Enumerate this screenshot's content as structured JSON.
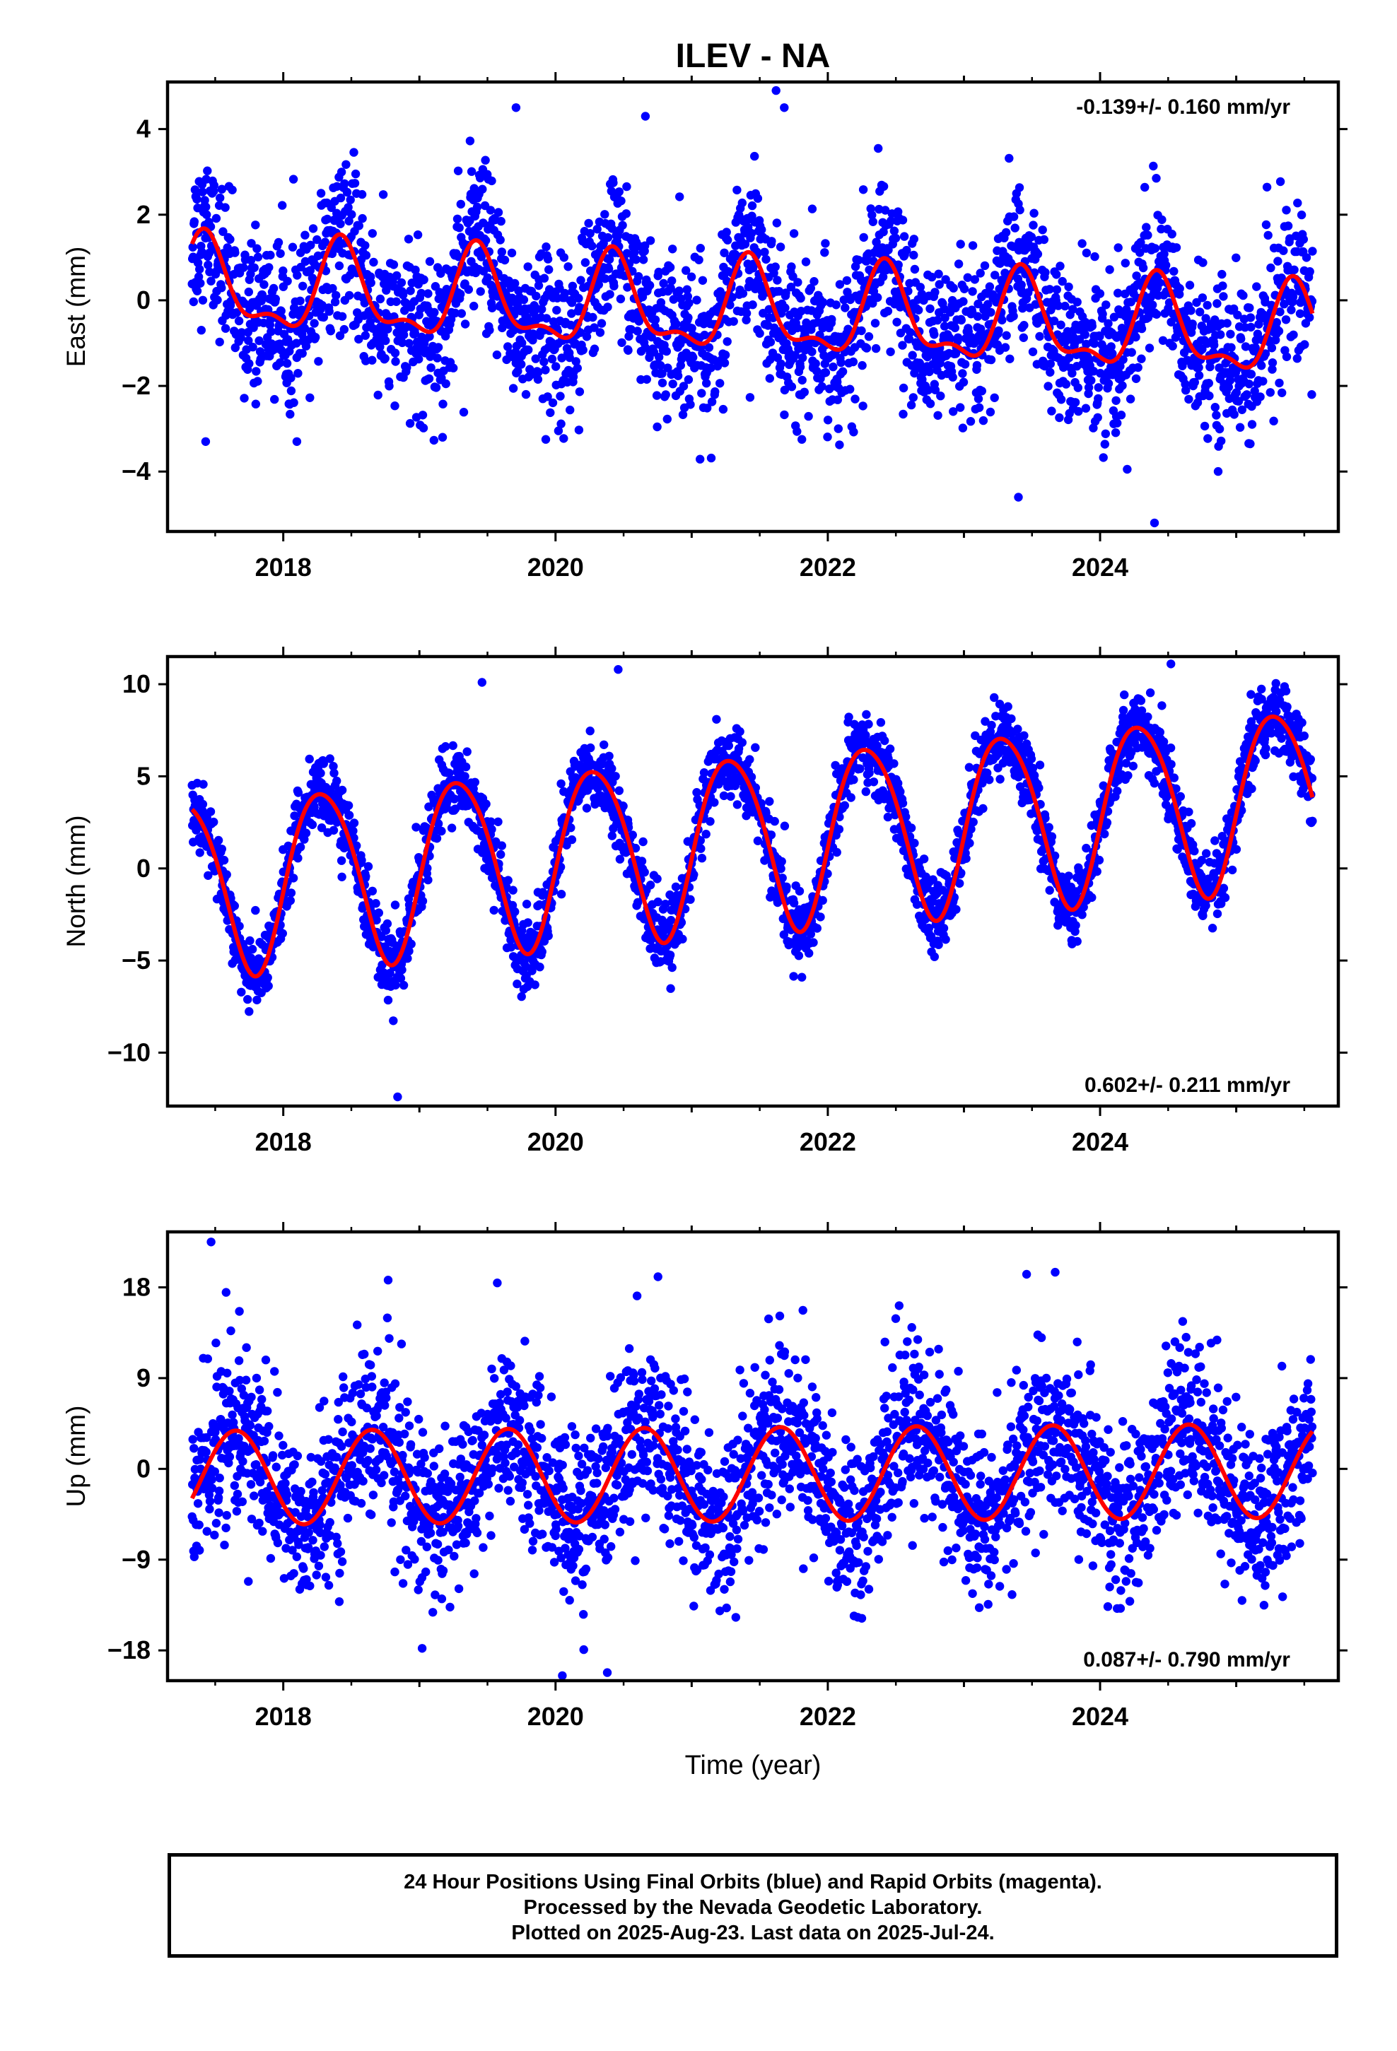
{
  "title": "ILEV - NA",
  "footer": {
    "line1": "24 Hour Positions Using Final Orbits (blue) and Rapid Orbits (magenta).",
    "line2": "Processed by the Nevada Geodetic Laboratory.",
    "line3": "Plotted on 2025-Aug-23. Last data on 2025-Jul-24."
  },
  "colors": {
    "points": "#0000ff",
    "fit": "#ff0000",
    "axes": "#000000"
  },
  "chart_data": [
    {
      "type": "scatter",
      "component": "east",
      "ylabel": "East (mm)",
      "xlabel": "",
      "rate_text": "-0.139+/- 0.160 mm/yr",
      "rate_position": "top-right",
      "xlim": [
        2017.15,
        2025.75
      ],
      "ylim": [
        -5.4,
        5.1
      ],
      "yticks": [
        -4,
        -2,
        0,
        2,
        4
      ],
      "xticks": [
        2018,
        2020,
        2022,
        2024
      ],
      "xtick_labels": [
        "2018",
        "2020",
        "2022",
        "2024"
      ],
      "data_range": [
        2017.33,
        2025.56
      ],
      "model": {
        "offset": 0.3,
        "rate": -0.139,
        "t0": 2017.33,
        "annual_sin": 0.42,
        "annual_cos": -0.88,
        "semi_sin": -0.38,
        "semi_cos": 0.18
      },
      "noise_sd": 0.9,
      "outliers": [
        [
          2017.43,
          -3.3
        ],
        [
          2018.1,
          -3.3
        ],
        [
          2019.17,
          -3.2
        ],
        [
          2021.62,
          4.9
        ],
        [
          2023.4,
          -4.6
        ],
        [
          2024.4,
          -5.2
        ],
        [
          2021.68,
          4.5
        ],
        [
          2019.71,
          4.5
        ],
        [
          2020.66,
          4.3
        ]
      ]
    },
    {
      "type": "scatter",
      "component": "north",
      "ylabel": "North (mm)",
      "xlabel": "",
      "rate_text": "0.602+/- 0.211 mm/yr",
      "rate_position": "bottom-right",
      "xlim": [
        2017.15,
        2025.75
      ],
      "ylim": [
        -12.9,
        11.5
      ],
      "yticks": [
        -10,
        -5,
        0,
        5,
        10
      ],
      "xticks": [
        2018,
        2020,
        2022,
        2024
      ],
      "xtick_labels": [
        "2018",
        "2020",
        "2022",
        "2024"
      ],
      "data_range": [
        2017.33,
        2025.56
      ],
      "model": {
        "offset": -0.9,
        "rate": 0.602,
        "t0": 2017.33,
        "annual_sin": 4.65,
        "annual_cos": -1.1,
        "semi_sin": 0.4,
        "semi_cos": 0.3
      },
      "noise_sd": 1.0,
      "outliers": [
        [
          2018.84,
          -12.4
        ],
        [
          2020.46,
          10.8
        ],
        [
          2024.52,
          11.1
        ],
        [
          2019.46,
          10.1
        ]
      ]
    },
    {
      "type": "scatter",
      "component": "up",
      "ylabel": "Up (mm)",
      "xlabel": "Time (year)",
      "rate_text": "0.087+/- 0.790 mm/yr",
      "rate_position": "bottom-right",
      "xlim": [
        2017.15,
        2025.75
      ],
      "ylim": [
        -21.0,
        23.5
      ],
      "yticks": [
        -18,
        -9,
        0,
        9,
        18
      ],
      "xticks": [
        2018,
        2020,
        2022,
        2024
      ],
      "xtick_labels": [
        "2018",
        "2020",
        "2022",
        "2024"
      ],
      "data_range": [
        2017.33,
        2025.56
      ],
      "model": {
        "offset": -0.9,
        "rate": 0.087,
        "t0": 2017.33,
        "annual_sin": -3.8,
        "annual_cos": -2.7,
        "semi_sin": 0.0,
        "semi_cos": 0.0
      },
      "noise_sd": 4.2,
      "outliers": [
        [
          2017.47,
          22.5
        ],
        [
          2017.58,
          17.5
        ],
        [
          2023.67,
          19.5
        ],
        [
          2020.05,
          -20.5
        ],
        [
          2020.38,
          -20.2
        ],
        [
          2019.02,
          -17.8
        ]
      ]
    }
  ]
}
